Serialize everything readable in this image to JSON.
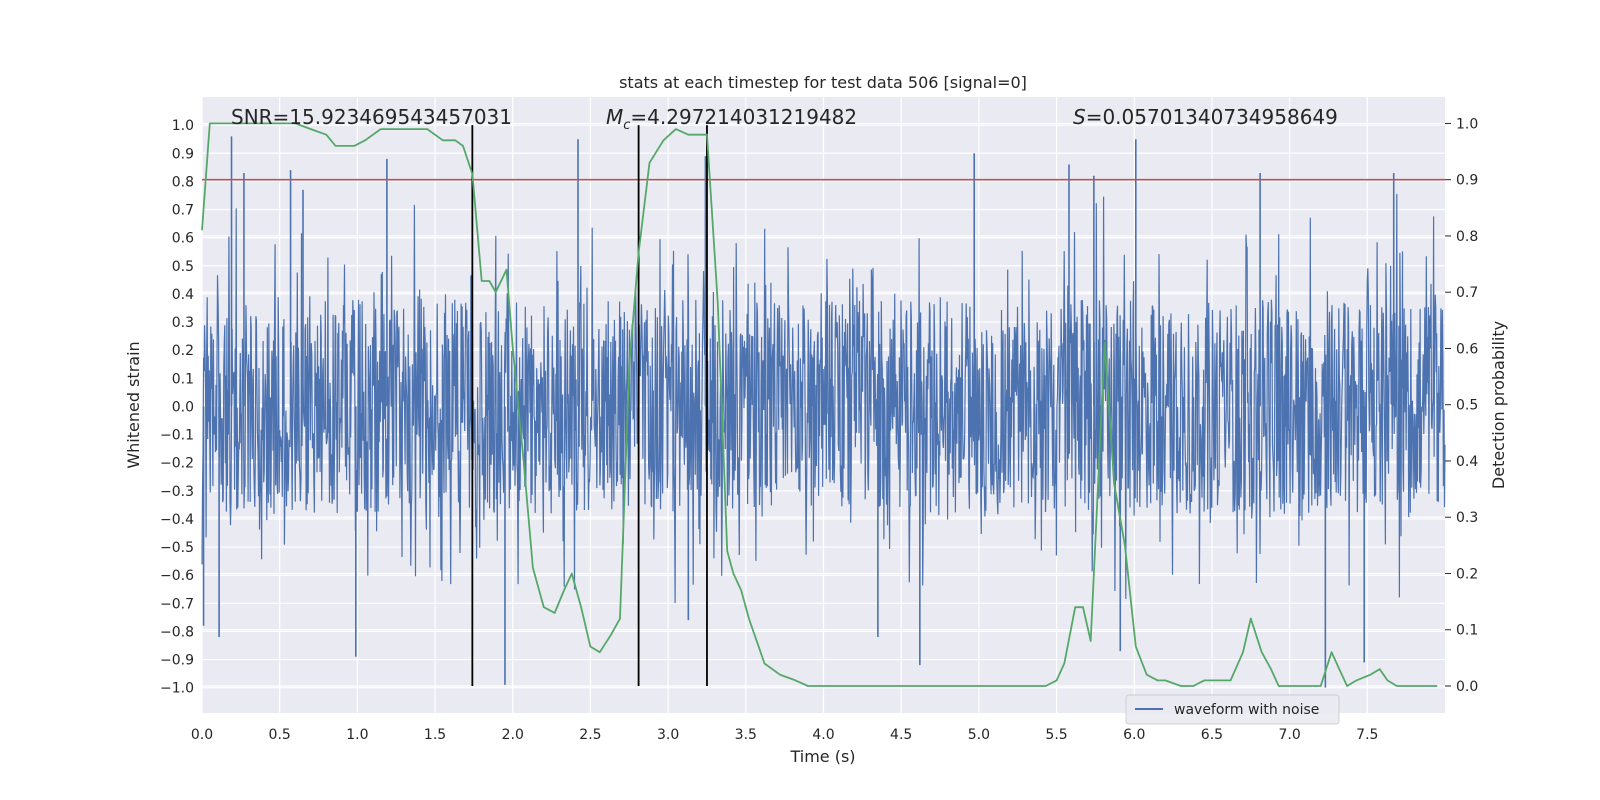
{
  "chart_data": {
    "type": "line",
    "title": "stats at each timestep for test data 506 [signal=0]",
    "xlabel": "Time (s)",
    "ylabel": "Whitened strain",
    "ylabel_right": "Detection probability",
    "xlim": [
      0.0,
      8.0
    ],
    "ylim": [
      -1.09,
      1.1
    ],
    "ylim_right": [
      -0.048,
      1.047
    ],
    "x_ticks": [
      "0.0",
      "0.5",
      "1.0",
      "1.5",
      "2.0",
      "2.5",
      "3.0",
      "3.5",
      "4.0",
      "4.5",
      "5.0",
      "5.5",
      "6.0",
      "6.5",
      "7.0",
      "7.5"
    ],
    "y_ticks": [
      "1.0",
      "0.9",
      "0.8",
      "0.7",
      "0.6",
      "0.5",
      "0.4",
      "0.3",
      "0.2",
      "0.1",
      "0.0",
      "−0.1",
      "−0.2",
      "−0.3",
      "−0.4",
      "−0.5",
      "−0.6",
      "−0.7",
      "−0.8",
      "−0.9",
      "−1.0"
    ],
    "y_right_ticks": [
      "1.0",
      "0.9",
      "0.8",
      "0.7",
      "0.6",
      "0.5",
      "0.4",
      "0.3",
      "0.2",
      "0.1",
      "0.0"
    ],
    "grid": true,
    "stats": {
      "snr_label": "SNR=15.923469543457031",
      "mc_symbol": "M",
      "mc_subscript": "c",
      "mc_value": "=4.297214031219482",
      "s_symbol": "S",
      "s_value": "=0.05701340734958649"
    },
    "legend": {
      "label": "waveform with noise",
      "position": "lower-right"
    },
    "threshold": {
      "value": 0.9,
      "axis": "right",
      "color": "#c44e52"
    },
    "vertical_lines": [
      1.74,
      2.81,
      3.25
    ],
    "waveform": {
      "name": "waveform with noise",
      "color": "#4c72b0",
      "duration_s": 8.0,
      "peaks": [
        {
          "t": 0.01,
          "v": -0.78
        },
        {
          "t": 0.11,
          "v": -0.82
        },
        {
          "t": 0.19,
          "v": 0.96
        },
        {
          "t": 0.27,
          "v": 0.83
        },
        {
          "t": 0.57,
          "v": 0.84
        },
        {
          "t": 0.65,
          "v": 0.77
        },
        {
          "t": 0.99,
          "v": -0.89
        },
        {
          "t": 1.19,
          "v": 0.88
        },
        {
          "t": 1.95,
          "v": -0.99
        },
        {
          "t": 2.42,
          "v": 0.95
        },
        {
          "t": 3.13,
          "v": -0.76
        },
        {
          "t": 3.24,
          "v": 0.89
        },
        {
          "t": 4.35,
          "v": -0.82
        },
        {
          "t": 4.62,
          "v": -0.92
        },
        {
          "t": 4.97,
          "v": 0.9
        },
        {
          "t": 5.58,
          "v": 0.86
        },
        {
          "t": 5.74,
          "v": 0.82
        },
        {
          "t": 5.91,
          "v": -0.87
        },
        {
          "t": 6.01,
          "v": 0.95
        },
        {
          "t": 6.81,
          "v": 0.83
        },
        {
          "t": 7.23,
          "v": -1.0
        },
        {
          "t": 7.48,
          "v": -0.91
        },
        {
          "t": 7.67,
          "v": 0.83
        }
      ]
    },
    "series": [
      {
        "name": "detection probability",
        "axis": "right",
        "color": "#55a868",
        "x": [
          0.0,
          0.05,
          0.1,
          0.15,
          0.2,
          0.3,
          0.4,
          0.5,
          0.6,
          0.7,
          0.8,
          0.86,
          0.93,
          0.98,
          1.05,
          1.15,
          1.25,
          1.35,
          1.45,
          1.55,
          1.63,
          1.68,
          1.74,
          1.8,
          1.85,
          1.89,
          1.96,
          2.0,
          2.07,
          2.13,
          2.2,
          2.27,
          2.33,
          2.38,
          2.44,
          2.5,
          2.56,
          2.63,
          2.69,
          2.75,
          2.81,
          2.88,
          2.97,
          3.05,
          3.13,
          3.18,
          3.25,
          3.32,
          3.38,
          3.42,
          3.47,
          3.52,
          3.62,
          3.72,
          3.82,
          3.9,
          4.0,
          4.5,
          5.0,
          5.3,
          5.43,
          5.5,
          5.55,
          5.62,
          5.67,
          5.72,
          5.81,
          5.87,
          5.94,
          6.01,
          6.08,
          6.15,
          6.2,
          6.3,
          6.38,
          6.45,
          6.5,
          6.55,
          6.62,
          6.7,
          6.75,
          6.82,
          6.88,
          6.93,
          7.0,
          7.1,
          7.2,
          7.27,
          7.32,
          7.37,
          7.43,
          7.52,
          7.58,
          7.63,
          7.69,
          7.75,
          7.8,
          7.86,
          7.95
        ],
        "y": [
          0.81,
          1.0,
          1.0,
          1.0,
          1.0,
          1.0,
          1.0,
          1.0,
          1.0,
          0.99,
          0.98,
          0.96,
          0.96,
          0.96,
          0.97,
          0.99,
          0.99,
          0.99,
          0.99,
          0.97,
          0.97,
          0.96,
          0.91,
          0.72,
          0.72,
          0.7,
          0.74,
          0.6,
          0.4,
          0.21,
          0.14,
          0.13,
          0.17,
          0.2,
          0.14,
          0.07,
          0.06,
          0.09,
          0.12,
          0.57,
          0.77,
          0.93,
          0.97,
          0.99,
          0.98,
          0.98,
          0.98,
          0.68,
          0.24,
          0.2,
          0.17,
          0.12,
          0.04,
          0.02,
          0.01,
          0.0,
          0.0,
          0.0,
          0.0,
          0.0,
          0.0,
          0.01,
          0.04,
          0.14,
          0.14,
          0.08,
          0.61,
          0.36,
          0.25,
          0.07,
          0.02,
          0.01,
          0.01,
          0.0,
          0.0,
          0.01,
          0.01,
          0.01,
          0.01,
          0.06,
          0.12,
          0.06,
          0.03,
          0.0,
          0.0,
          0.0,
          0.0,
          0.06,
          0.03,
          0.0,
          0.01,
          0.02,
          0.03,
          0.01,
          0.0,
          0.0,
          0.0,
          0.0,
          0.0
        ]
      }
    ]
  }
}
